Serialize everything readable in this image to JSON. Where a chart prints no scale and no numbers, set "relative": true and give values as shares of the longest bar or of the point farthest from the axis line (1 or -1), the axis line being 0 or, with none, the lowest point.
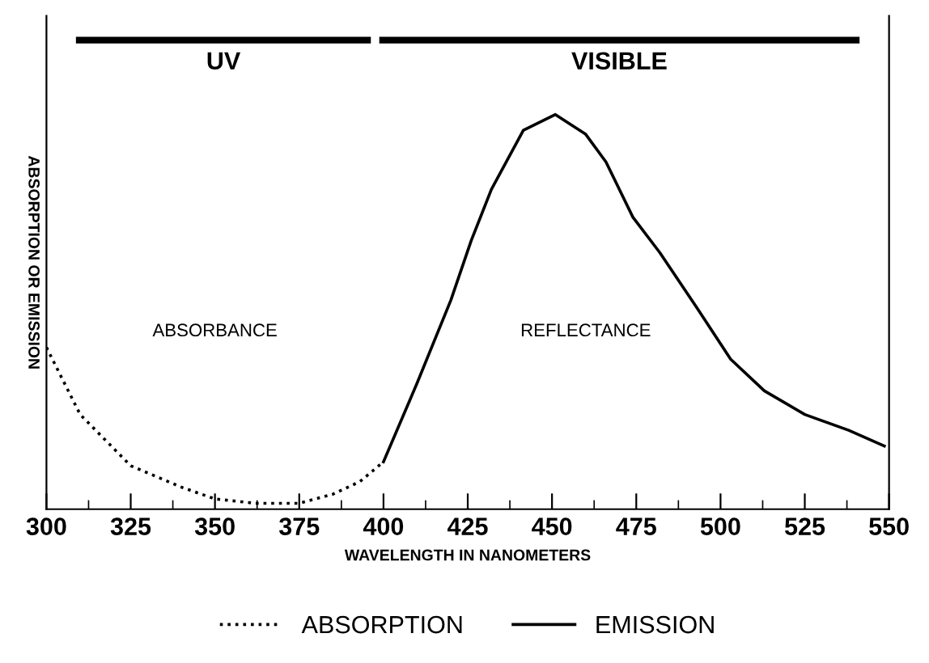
{
  "chart_data": {
    "type": "line",
    "relative": true,
    "xlabel": "WAVELENGTH IN NANOMETERS",
    "ylabel": "ABSORPTION OR EMISSION",
    "xlim": [
      300,
      550
    ],
    "xticks": [
      300,
      325,
      350,
      375,
      400,
      425,
      450,
      475,
      500,
      525,
      550
    ],
    "series": [
      {
        "name": "ABSORPTION",
        "color": "#000000",
        "line_style": "dotted",
        "x": [
          300,
          310,
          325,
          340,
          350,
          362,
          375,
          385,
          393,
          400
        ],
        "values": [
          0.41,
          0.24,
          0.11,
          0.056,
          0.026,
          0.015,
          0.015,
          0.038,
          0.07,
          0.12
        ]
      },
      {
        "name": "EMISSION",
        "color": "#000000",
        "line_style": "solid",
        "x": [
          400,
          410,
          420,
          426,
          432,
          441.5,
          451,
          460,
          466,
          474,
          482,
          493,
          503,
          513,
          525,
          538,
          548.6
        ],
        "values": [
          0.12,
          0.32,
          0.53,
          0.68,
          0.81,
          0.96,
          1.0,
          0.95,
          0.88,
          0.74,
          0.65,
          0.51,
          0.38,
          0.3,
          0.24,
          0.2,
          0.16
        ]
      }
    ],
    "annotations": [
      "ABSORBANCE",
      "REFLECTANCE",
      "UV",
      "VISIBLE"
    ],
    "legend": "bottom",
    "grid": false
  }
}
